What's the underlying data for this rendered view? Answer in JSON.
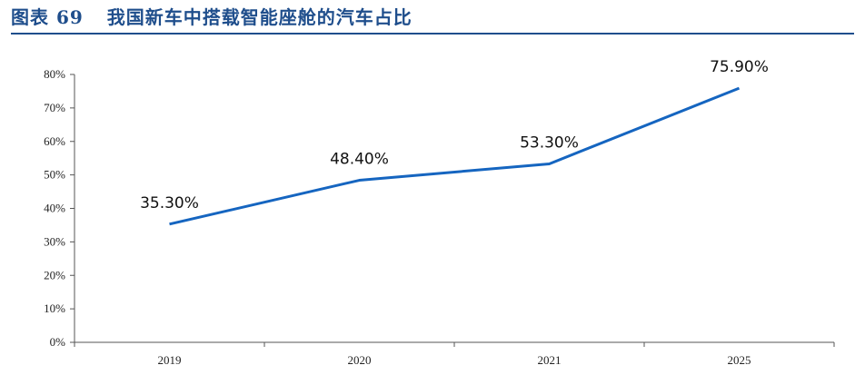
{
  "header": {
    "figure_number": "图表 69",
    "title": "我国新车中搭载智能座舱的汽车占比"
  },
  "chart_data": {
    "type": "line",
    "title": "我国新车中搭载智能座舱的汽车占比",
    "categories": [
      "2019",
      "2020",
      "2021",
      "2025"
    ],
    "series": [
      {
        "values": [
          35.3,
          48.4,
          53.3,
          75.9
        ],
        "data_labels": [
          "35.30%",
          "48.40%",
          "53.30%",
          "75.90%"
        ],
        "color": "#1565c0"
      }
    ],
    "xlabel": "",
    "ylabel": "",
    "ylim": [
      0,
      80
    ],
    "yticks": [
      0,
      10,
      20,
      30,
      40,
      50,
      60,
      70,
      80
    ],
    "ytick_labels": [
      "0%",
      "10%",
      "20%",
      "30%",
      "40%",
      "50%",
      "60%",
      "70%",
      "80%"
    ],
    "grid": false,
    "legend": "none"
  }
}
